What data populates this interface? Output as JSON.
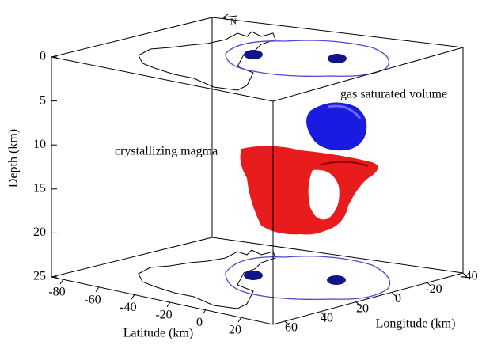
{
  "figure": {
    "north_label": "N",
    "annotations": [
      "gas saturated volume",
      "crystallizing magma"
    ],
    "axes": {
      "depth": {
        "label": "Depth (km)",
        "ticks": [
          "0",
          "5",
          "10",
          "15",
          "20",
          "25"
        ]
      },
      "latitude": {
        "label": "Latitude (km)",
        "ticks": [
          "-80",
          "-60",
          "-40",
          "-20",
          "0",
          "20"
        ]
      },
      "longitude": {
        "label": "Longitude (km)",
        "ticks": [
          "60",
          "40",
          "20",
          "0",
          "-20",
          "-40"
        ]
      }
    }
  }
}
